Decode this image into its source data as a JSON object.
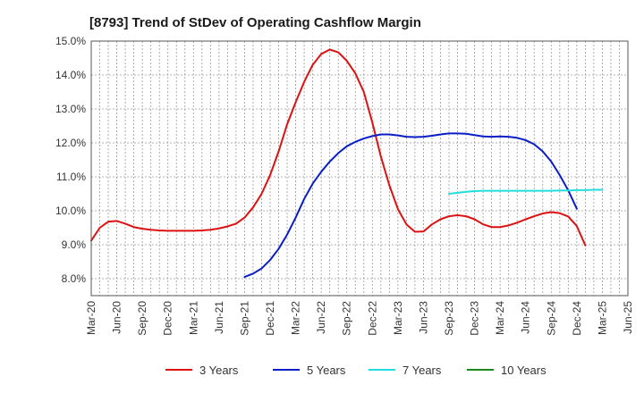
{
  "chart_data": {
    "type": "line",
    "title": "[8793]  Trend of StDev of Operating Cashflow Margin",
    "xlabel": "",
    "ylabel": "",
    "x_ticks": [
      "Mar-20",
      "Jun-20",
      "Sep-20",
      "Dec-20",
      "Mar-21",
      "Jun-21",
      "Sep-21",
      "Dec-21",
      "Mar-22",
      "Jun-22",
      "Sep-22",
      "Dec-22",
      "Mar-23",
      "Jun-23",
      "Sep-23",
      "Dec-23",
      "Mar-24",
      "Jun-24",
      "Sep-24",
      "Dec-24",
      "Mar-25",
      "Jun-25"
    ],
    "y_ticks": [
      "8.0%",
      "9.0%",
      "10.0%",
      "11.0%",
      "12.0%",
      "13.0%",
      "14.0%",
      "15.0%"
    ],
    "ylim": [
      7.5,
      15.0
    ],
    "grid": true,
    "legend_position": "bottom",
    "series": [
      {
        "name": "3 Years",
        "color": "#dd1111",
        "start": "Mar-20",
        "values": [
          9.12,
          9.5,
          9.68,
          9.7,
          9.62,
          9.52,
          9.47,
          9.44,
          9.42,
          9.41,
          9.41,
          9.41,
          9.41,
          9.42,
          9.44,
          9.48,
          9.54,
          9.62,
          9.8,
          10.1,
          10.5,
          11.05,
          11.75,
          12.55,
          13.2,
          13.8,
          14.3,
          14.62,
          14.75,
          14.67,
          14.42,
          14.05,
          13.5,
          12.6,
          11.6,
          10.75,
          10.05,
          9.6,
          9.38,
          9.39,
          9.6,
          9.75,
          9.84,
          9.87,
          9.84,
          9.75,
          9.6,
          9.52,
          9.52,
          9.57,
          9.65,
          9.75,
          9.84,
          9.92,
          9.96,
          9.93,
          9.83,
          9.55,
          8.98
        ]
      },
      {
        "name": "5 Years",
        "color": "#0a1ec8",
        "start": "Sep-21",
        "values": [
          8.05,
          8.15,
          8.3,
          8.55,
          8.88,
          9.3,
          9.8,
          10.35,
          10.8,
          11.15,
          11.45,
          11.7,
          11.9,
          12.03,
          12.13,
          12.2,
          12.25,
          12.25,
          12.22,
          12.18,
          12.17,
          12.18,
          12.21,
          12.25,
          12.28,
          12.28,
          12.27,
          12.23,
          12.19,
          12.18,
          12.19,
          12.18,
          12.15,
          12.08,
          11.96,
          11.75,
          11.45,
          11.05,
          10.6,
          10.06
        ]
      },
      {
        "name": "7 Years",
        "color": "#22dddd",
        "start": "Sep-23",
        "values": [
          10.5,
          10.53,
          10.56,
          10.58,
          10.59,
          10.59,
          10.59,
          10.59,
          10.59,
          10.59,
          10.59,
          10.59,
          10.59,
          10.6,
          10.6,
          10.61,
          10.61,
          10.62,
          10.62
        ]
      },
      {
        "name": "10 Years",
        "color": "#1a8a1a",
        "start": "Mar-25",
        "values": []
      }
    ]
  }
}
